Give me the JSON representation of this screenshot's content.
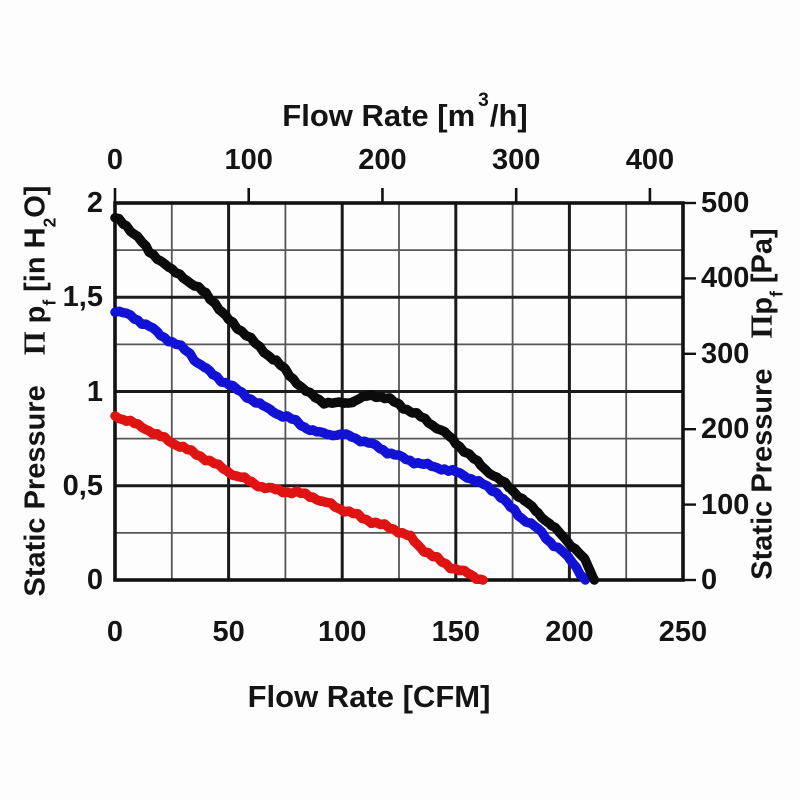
{
  "colors": {
    "background": "#fdfdfd",
    "text": "#141414",
    "grid_major": "#1b1b1b",
    "grid_minor": "#565656",
    "border": "#111111",
    "black_curve": "#0b0b0b",
    "blue_curve": "#1212d6",
    "red_curve": "#de1312"
  },
  "axes": {
    "top": {
      "title_pre": "Flow Rate [m",
      "title_sup": "3",
      "title_post": "/h]",
      "ticks": [
        {
          "label": "0",
          "value": 0
        },
        {
          "label": "100",
          "value": 100
        },
        {
          "label": "200",
          "value": 200
        },
        {
          "label": "300",
          "value": 300
        },
        {
          "label": "400",
          "value": 400
        }
      ]
    },
    "bottom": {
      "title": "Flow Rate [CFM]",
      "ticks": [
        {
          "label": "0",
          "value": 0
        },
        {
          "label": "50",
          "value": 50
        },
        {
          "label": "100",
          "value": 100
        },
        {
          "label": "150",
          "value": 150
        },
        {
          "label": "200",
          "value": 200
        },
        {
          "label": "250",
          "value": 250
        }
      ]
    },
    "left": {
      "title": "Static Pressure",
      "symbol": "Π",
      "var": "p",
      "var_sub": "f",
      "unit_pre": "[in H",
      "unit_sub": "2",
      "unit_post": "O]",
      "ticks": [
        {
          "label": "2",
          "value": 2
        },
        {
          "label": "1,5",
          "value": 1.5
        },
        {
          "label": "1",
          "value": 1
        },
        {
          "label": "0,5",
          "value": 0.5
        },
        {
          "label": "0",
          "value": 0
        }
      ]
    },
    "right": {
      "title": "Static Pressure",
      "symbol": "Π",
      "var": "p",
      "var_sub": "f",
      "unit": "[Pa]",
      "ticks": [
        {
          "label": "500",
          "value": 500
        },
        {
          "label": "400",
          "value": 400
        },
        {
          "label": "300",
          "value": 300
        },
        {
          "label": "200",
          "value": 200
        },
        {
          "label": "100",
          "value": 100
        },
        {
          "label": "0",
          "value": 0
        }
      ]
    }
  },
  "chart_data": {
    "type": "line",
    "title": "",
    "xlabel_bottom": "Flow Rate [CFM]",
    "xlabel_top": "Flow Rate [m³/h]",
    "ylabel_left": "Static Pressure Πpf [in H2O]",
    "ylabel_right": "Static Pressure Πpf [Pa]",
    "x_bottom_range": [
      0,
      250
    ],
    "x_top_range": [
      0,
      424.75
    ],
    "y_left_range": [
      0,
      2
    ],
    "y_right_range": [
      0,
      500
    ],
    "grid": {
      "minor_x_step_cfm": 25,
      "major_x_step_cfm": 50,
      "minor_y_step_in": 0.25,
      "major_y_step_in": 0.5
    },
    "legend": "none",
    "series": [
      {
        "name": "red-curve",
        "color_key": "red_curve",
        "units": [
          "CFM",
          "in H2O"
        ],
        "points": [
          [
            0,
            0.87
          ],
          [
            5,
            0.85
          ],
          [
            10,
            0.82
          ],
          [
            15,
            0.795
          ],
          [
            20,
            0.76
          ],
          [
            25,
            0.73
          ],
          [
            30,
            0.705
          ],
          [
            34,
            0.675
          ],
          [
            38,
            0.655
          ],
          [
            42,
            0.63
          ],
          [
            46,
            0.6
          ],
          [
            50,
            0.575
          ],
          [
            54,
            0.55
          ],
          [
            57,
            0.535
          ],
          [
            60,
            0.52
          ],
          [
            63,
            0.505
          ],
          [
            66,
            0.49
          ],
          [
            69,
            0.48
          ],
          [
            72,
            0.475
          ],
          [
            76,
            0.468
          ],
          [
            80,
            0.462
          ],
          [
            84,
            0.452
          ],
          [
            87,
            0.445
          ],
          [
            91,
            0.415
          ],
          [
            95,
            0.4
          ],
          [
            99,
            0.38
          ],
          [
            103,
            0.36
          ],
          [
            107,
            0.34
          ],
          [
            111,
            0.32
          ],
          [
            115,
            0.3
          ],
          [
            119,
            0.285
          ],
          [
            123,
            0.27
          ],
          [
            127,
            0.245
          ],
          [
            130,
            0.225
          ],
          [
            133,
            0.19
          ],
          [
            136,
            0.16
          ],
          [
            140,
            0.125
          ],
          [
            144,
            0.095
          ],
          [
            148,
            0.07
          ],
          [
            152,
            0.05
          ],
          [
            156,
            0.03
          ],
          [
            159,
            0.015
          ],
          [
            162,
            0.0
          ]
        ]
      },
      {
        "name": "blue-curve",
        "color_key": "blue_curve",
        "units": [
          "CFM",
          "in H2O"
        ],
        "points": [
          [
            0,
            1.43
          ],
          [
            5,
            1.41
          ],
          [
            10,
            1.38
          ],
          [
            15,
            1.345
          ],
          [
            20,
            1.3
          ],
          [
            25,
            1.265
          ],
          [
            29,
            1.235
          ],
          [
            33,
            1.2
          ],
          [
            36,
            1.16
          ],
          [
            40,
            1.12
          ],
          [
            43,
            1.09
          ],
          [
            47,
            1.06
          ],
          [
            50,
            1.04
          ],
          [
            54,
            1.005
          ],
          [
            58,
            0.975
          ],
          [
            62,
            0.945
          ],
          [
            65,
            0.92
          ],
          [
            69,
            0.9
          ],
          [
            72,
            0.88
          ],
          [
            76,
            0.86
          ],
          [
            80,
            0.84
          ],
          [
            84,
            0.81
          ],
          [
            87,
            0.79
          ],
          [
            90,
            0.78
          ],
          [
            94,
            0.775
          ],
          [
            100,
            0.77
          ],
          [
            104,
            0.76
          ],
          [
            108,
            0.745
          ],
          [
            113,
            0.72
          ],
          [
            118,
            0.69
          ],
          [
            123,
            0.665
          ],
          [
            128,
            0.64
          ],
          [
            134,
            0.62
          ],
          [
            140,
            0.6
          ],
          [
            145,
            0.59
          ],
          [
            150,
            0.57
          ],
          [
            155,
            0.55
          ],
          [
            160,
            0.52
          ],
          [
            164,
            0.49
          ],
          [
            168,
            0.465
          ],
          [
            171,
            0.43
          ],
          [
            174,
            0.385
          ],
          [
            179,
            0.33
          ],
          [
            183,
            0.3
          ],
          [
            186,
            0.27
          ],
          [
            190,
            0.22
          ],
          [
            193,
            0.19
          ],
          [
            196,
            0.16
          ],
          [
            200,
            0.11
          ],
          [
            203,
            0.07
          ],
          [
            207,
            0.0
          ]
        ]
      },
      {
        "name": "black-curve",
        "color_key": "black_curve",
        "units": [
          "CFM",
          "in H2O"
        ],
        "points": [
          [
            0,
            1.92
          ],
          [
            5,
            1.88
          ],
          [
            10,
            1.82
          ],
          [
            15,
            1.74
          ],
          [
            20,
            1.7
          ],
          [
            25,
            1.64
          ],
          [
            30,
            1.61
          ],
          [
            35,
            1.56
          ],
          [
            40,
            1.52
          ],
          [
            44,
            1.47
          ],
          [
            47,
            1.42
          ],
          [
            50,
            1.38
          ],
          [
            54,
            1.34
          ],
          [
            58,
            1.3
          ],
          [
            62,
            1.25
          ],
          [
            66,
            1.21
          ],
          [
            71,
            1.16
          ],
          [
            75,
            1.11
          ],
          [
            80,
            1.05
          ],
          [
            84,
            1.0
          ],
          [
            88,
            0.97
          ],
          [
            92,
            0.945
          ],
          [
            97,
            0.935
          ],
          [
            101,
            0.94
          ],
          [
            105,
            0.95
          ],
          [
            109,
            0.965
          ],
          [
            113,
            0.98
          ],
          [
            117,
            0.975
          ],
          [
            121,
            0.955
          ],
          [
            125,
            0.93
          ],
          [
            131,
            0.89
          ],
          [
            138,
            0.84
          ],
          [
            145,
            0.78
          ],
          [
            150,
            0.73
          ],
          [
            156,
            0.66
          ],
          [
            161,
            0.61
          ],
          [
            168,
            0.54
          ],
          [
            174,
            0.49
          ],
          [
            180,
            0.42
          ],
          [
            186,
            0.36
          ],
          [
            192,
            0.29
          ],
          [
            199,
            0.21
          ],
          [
            203,
            0.16
          ],
          [
            207,
            0.1
          ],
          [
            211,
            0.0
          ]
        ]
      }
    ]
  }
}
